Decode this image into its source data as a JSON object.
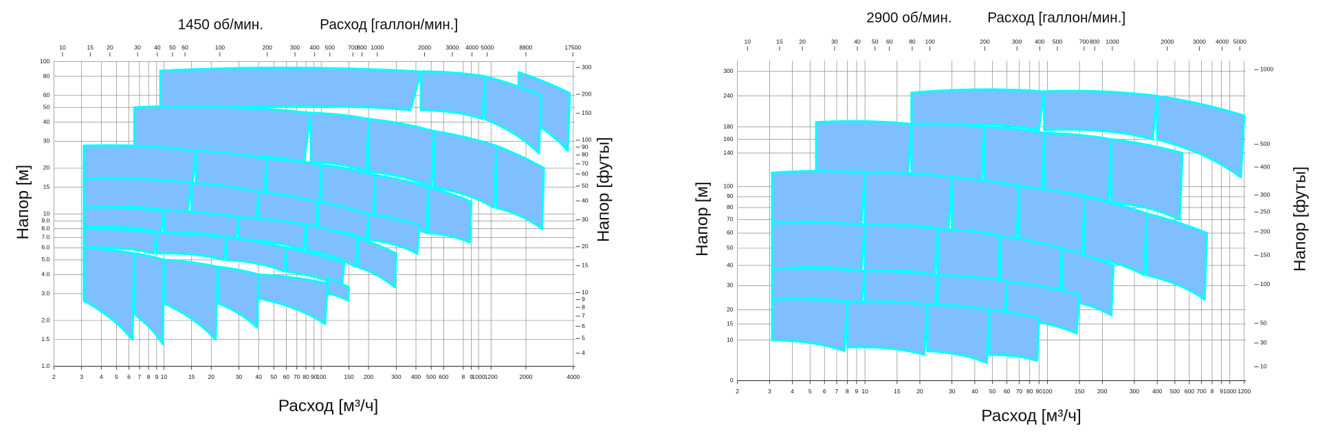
{
  "chart_data": [
    {
      "type": "tiles",
      "title": "1450 об/мин.",
      "x2label": "Расход [галлон/мин.]",
      "xlabel": "Расход [м³/ч]",
      "ylabel": "Напор [м]",
      "y2label": "Напор [футы]",
      "xscale": "log",
      "yscale": "log",
      "xlim": [
        2,
        4000
      ],
      "ylim": [
        1,
        100
      ],
      "x2lim": [
        8.81,
        17612
      ],
      "y2lim": [
        3.281,
        328.1
      ],
      "grid": true,
      "color": "#7fbfff",
      "edge_color": "#00ffff",
      "xticks": [
        2,
        3,
        4,
        5,
        6,
        7,
        8,
        9,
        10,
        15,
        20,
        30,
        40,
        50,
        60,
        70,
        80,
        90,
        100,
        150,
        200,
        300,
        400,
        500,
        600,
        {
          "value": 800,
          "label": "8"
        },
        {
          "value": 900,
          "label": "9"
        },
        1000,
        1200,
        2000,
        4000
      ],
      "x2ticks": [
        10,
        15,
        20,
        30,
        40,
        50,
        60,
        100,
        200,
        300,
        400,
        500,
        700,
        800,
        1000,
        2000,
        3000,
        4000,
        5000,
        8800,
        17500
      ],
      "yticks": [
        100,
        80,
        60,
        50,
        40,
        30,
        20,
        15,
        10,
        {
          "value": 9,
          "label": "9.0"
        },
        {
          "value": 8,
          "label": "8.0"
        },
        {
          "value": 7,
          "label": "7.0"
        },
        {
          "value": 6,
          "label": "6.0"
        },
        {
          "value": 5,
          "label": "5.0"
        },
        {
          "value": 4,
          "label": "4.0"
        },
        {
          "value": 3,
          "label": "3.0"
        },
        {
          "value": 2,
          "label": "2.0"
        },
        1.5,
        {
          "value": 1,
          "label": "1.0"
        }
      ],
      "y2ticks": [
        300,
        200,
        150,
        100,
        90,
        80,
        70,
        60,
        50,
        40,
        30,
        20,
        15,
        10,
        9,
        8,
        7,
        6,
        5,
        4
      ],
      "tiles": [
        [
          1800,
          3800,
          85,
          62,
          45,
          26
        ],
        [
          1100,
          2500,
          80,
          60,
          42,
          25
        ],
        [
          430,
          1100,
          86,
          80,
          48,
          42
        ],
        [
          9.5,
          430,
          87,
          86,
          48,
          48
        ],
        [
          1300,
          2600,
          28,
          20,
          11,
          8
        ],
        [
          520,
          1300,
          35,
          28,
          15,
          11
        ],
        [
          200,
          520,
          42,
          35,
          19,
          15
        ],
        [
          86,
          200,
          46,
          42,
          22,
          19
        ],
        [
          6.5,
          86,
          50,
          46,
          24,
          22
        ],
        [
          480,
          900,
          15,
          12,
          7.5,
          6.5
        ],
        [
          220,
          480,
          18,
          15,
          9,
          7.5
        ],
        [
          100,
          220,
          21,
          18,
          11,
          9
        ],
        [
          45,
          100,
          23,
          21,
          13,
          11
        ],
        [
          16,
          45,
          26,
          23,
          14,
          13
        ],
        [
          3.1,
          16,
          28,
          26,
          16,
          14
        ],
        [
          200,
          420,
          10,
          8.5,
          6.8,
          5.5
        ],
        [
          95,
          200,
          12,
          10,
          8,
          6.8
        ],
        [
          40,
          95,
          14,
          12,
          9,
          8
        ],
        [
          15,
          40,
          16,
          14,
          10,
          9
        ],
        [
          3.1,
          15,
          17,
          16,
          11,
          10
        ],
        [
          170,
          300,
          7,
          5.5,
          4.5,
          3.3
        ],
        [
          80,
          170,
          8.5,
          7,
          5.8,
          4.5
        ],
        [
          30,
          80,
          9.5,
          8.5,
          6.8,
          5.8
        ],
        [
          10,
          30,
          10.5,
          9.5,
          7.5,
          6.8
        ],
        [
          3.1,
          10,
          11,
          10.5,
          8.2,
          7.5
        ],
        [
          60,
          140,
          6,
          4.8,
          4.2,
          3.3
        ],
        [
          25,
          60,
          7,
          6,
          5,
          4.2
        ],
        [
          9,
          25,
          7.5,
          7,
          5.5,
          5
        ],
        [
          3.1,
          9,
          8,
          7.5,
          6,
          5.5
        ],
        [
          110,
          150,
          3.8,
          3.3,
          3,
          2.7
        ],
        [
          40,
          110,
          4,
          3.5,
          2.8,
          1.9
        ],
        [
          22,
          40,
          4.5,
          4,
          2.6,
          1.8
        ],
        [
          10,
          22,
          5,
          4.5,
          2.6,
          1.5
        ],
        [
          6.5,
          10,
          5.5,
          5,
          2.2,
          1.4
        ],
        [
          3.1,
          6.5,
          6,
          5.5,
          2.7,
          1.5
        ]
      ]
    },
    {
      "type": "tiles",
      "title": "2900 об/мин.",
      "x2label": "Расход [галлон/мин.]",
      "xlabel": "Расход [м³/ч]",
      "ylabel": "Напор [м]",
      "y2label": "Напор [футы]",
      "xscale": "log",
      "yscale": "symlog",
      "symlog_constant": 25,
      "y2_symlog_constant": 82.03,
      "xlim": [
        2,
        1200
      ],
      "ylim": [
        0,
        330
      ],
      "x2lim": [
        8.81,
        5284
      ],
      "y2lim": [
        0,
        1082.7
      ],
      "grid": true,
      "color": "#7fbfff",
      "edge_color": "#00ffff",
      "xticks": [
        2,
        3,
        4,
        5,
        6,
        7,
        8,
        9,
        10,
        15,
        20,
        30,
        40,
        50,
        60,
        70,
        80,
        90,
        100,
        150,
        200,
        300,
        400,
        500,
        600,
        700,
        {
          "value": 800,
          "label": "8"
        },
        {
          "value": 900,
          "label": "9"
        },
        1000,
        1200
      ],
      "x2ticks": [
        10,
        15,
        20,
        30,
        40,
        50,
        60,
        80,
        100,
        200,
        300,
        400,
        500,
        700,
        800,
        1000,
        2000,
        3000,
        4000,
        5000
      ],
      "yticks": [
        300,
        240,
        180,
        160,
        140,
        100,
        90,
        80,
        70,
        60,
        50,
        40,
        30,
        20,
        15,
        10,
        0
      ],
      "y2ticks": [
        1000,
        500,
        400,
        300,
        250,
        200,
        150,
        100,
        50,
        30,
        10
      ],
      "tiles": [
        [
          400,
          1200,
          240,
          200,
          160,
          110
        ],
        [
          96,
          400,
          250,
          240,
          175,
          160
        ],
        [
          18,
          96,
          247,
          250,
          180,
          175
        ],
        [
          224,
          550,
          160,
          140,
          85,
          70
        ],
        [
          96,
          224,
          170,
          160,
          95,
          85
        ],
        [
          45,
          96,
          180,
          170,
          105,
          95
        ],
        [
          18,
          45,
          185,
          180,
          110,
          105
        ],
        [
          5.4,
          18,
          188,
          185,
          115,
          110
        ],
        [
          350,
          750,
          75,
          60,
          35,
          24
        ],
        [
          160,
          350,
          90,
          75,
          45,
          35
        ],
        [
          70,
          160,
          100,
          90,
          55,
          45
        ],
        [
          30,
          70,
          110,
          100,
          62,
          55
        ],
        [
          10,
          30,
          115,
          110,
          65,
          62
        ],
        [
          3.1,
          10,
          115,
          115,
          67,
          65
        ],
        [
          120,
          230,
          50,
          40,
          24,
          18
        ],
        [
          55,
          120,
          58,
          50,
          30,
          24
        ],
        [
          25,
          55,
          63,
          58,
          35,
          30
        ],
        [
          10,
          25,
          66,
          63,
          37,
          35
        ],
        [
          3.1,
          10,
          67,
          66,
          38,
          37
        ],
        [
          60,
          150,
          32,
          26,
          17,
          12
        ],
        [
          25,
          60,
          35,
          32,
          20,
          17
        ],
        [
          10,
          25,
          37,
          35,
          22,
          20
        ],
        [
          3.1,
          10,
          38,
          37,
          24,
          22
        ],
        [
          48,
          90,
          20,
          17,
          6,
          4.5
        ],
        [
          22,
          48,
          22,
          20,
          7,
          4
        ],
        [
          8,
          22,
          23,
          22,
          8,
          6
        ],
        [
          3.1,
          8,
          24,
          23,
          10,
          7
        ]
      ]
    }
  ]
}
